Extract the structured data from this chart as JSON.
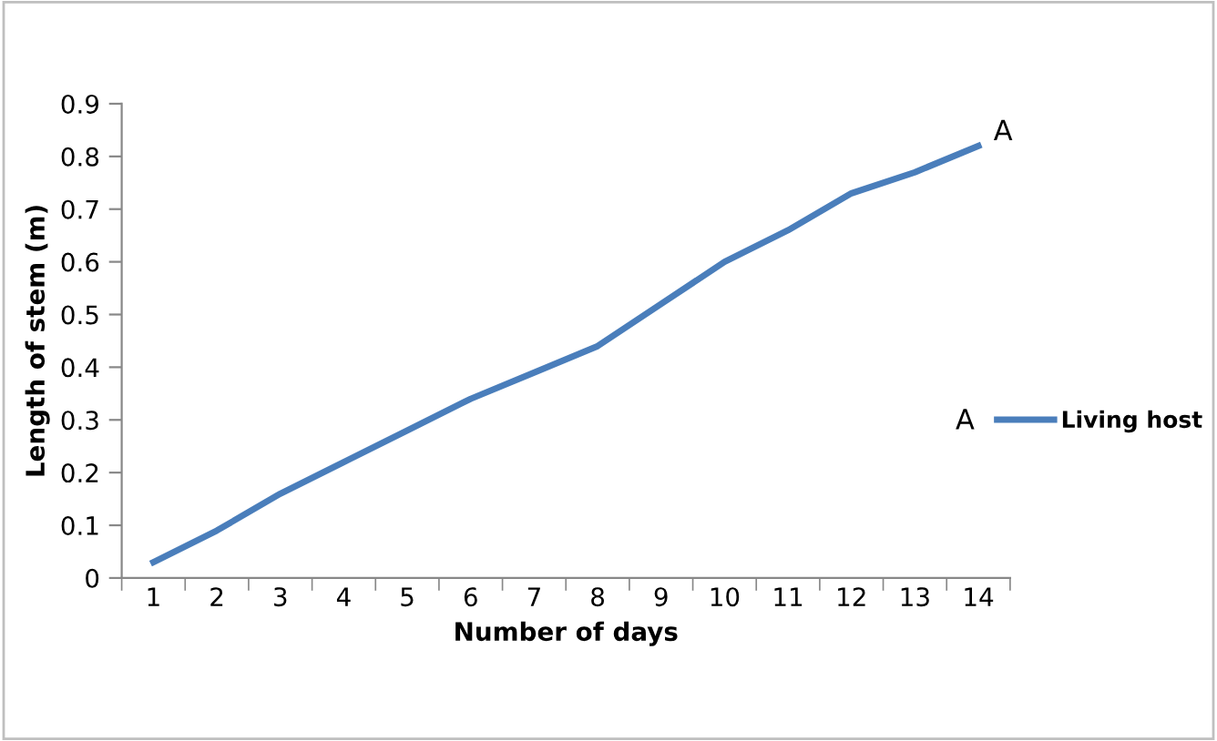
{
  "chart_data": {
    "type": "line",
    "xlabel": "Number of days",
    "ylabel": "Length of stem (m)",
    "categories": [
      "1",
      "2",
      "3",
      "4",
      "5",
      "6",
      "7",
      "8",
      "9",
      "10",
      "11",
      "12",
      "13",
      "14"
    ],
    "series": [
      {
        "name": "Living host",
        "color": "#4a7ebb",
        "values": [
          0.03,
          0.09,
          0.16,
          0.22,
          0.28,
          0.34,
          0.39,
          0.44,
          0.52,
          0.6,
          0.66,
          0.73,
          0.77,
          0.82
        ]
      }
    ],
    "ylim": [
      0,
      0.9
    ],
    "yticks": [
      0,
      0.1,
      0.2,
      0.3,
      0.4,
      0.5,
      0.6,
      0.7,
      0.8,
      0.9
    ],
    "annotations": [
      {
        "text": "A",
        "x": "14",
        "y": 0.82
      },
      "A"
    ],
    "grid": false,
    "legend": "right",
    "marker": "none",
    "line_style": "solid"
  }
}
